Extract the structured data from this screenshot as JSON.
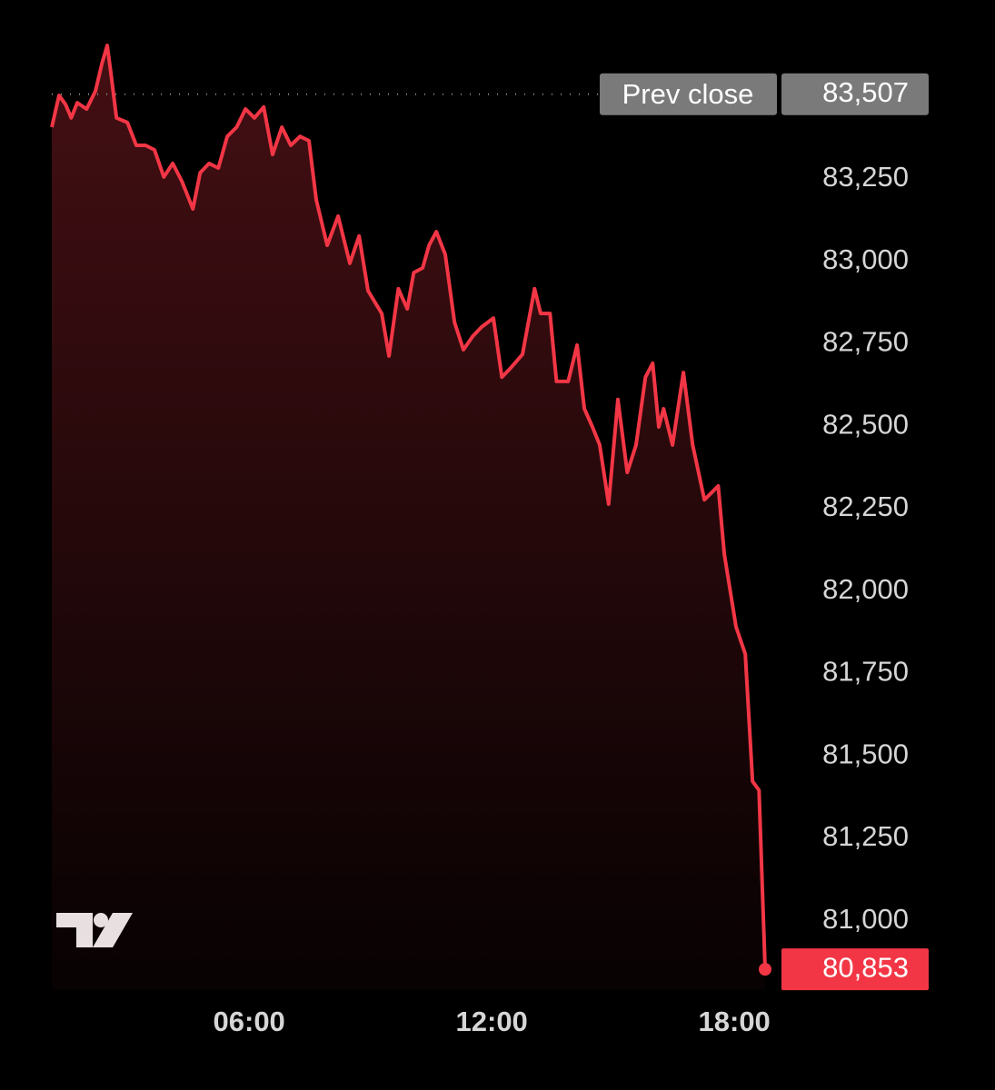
{
  "chart_data": {
    "type": "area",
    "color": "#f23645",
    "x": [
      1.12,
      1.3,
      1.46,
      1.6,
      1.75,
      1.98,
      2.2,
      2.36,
      2.49,
      2.58,
      2.72,
      2.99,
      3.21,
      3.44,
      3.66,
      3.89,
      4.11,
      4.34,
      4.61,
      4.79,
      5.01,
      5.24,
      5.46,
      5.69,
      5.91,
      6.13,
      6.36,
      6.58,
      6.81,
      7.03,
      7.26,
      7.48,
      7.66,
      7.93,
      8.2,
      8.49,
      8.72,
      8.94,
      9.28,
      9.46,
      9.69,
      9.91,
      10.07,
      10.29,
      10.45,
      10.63,
      10.85,
      11.08,
      11.3,
      11.53,
      11.75,
      12.04,
      12.25,
      12.47,
      12.76,
      13.06,
      13.21,
      13.44,
      13.6,
      13.89,
      14.11,
      14.29,
      14.49,
      14.67,
      14.89,
      15.12,
      15.35,
      15.57,
      15.8,
      15.98,
      16.13,
      16.25,
      16.47,
      16.74,
      16.97,
      17.26,
      17.6,
      17.75,
      18.04,
      18.27,
      18.45,
      18.61,
      18.76
    ],
    "values": [
      83407,
      83503,
      83476,
      83435,
      83481,
      83462,
      83517,
      83600,
      83655,
      83572,
      83435,
      83421,
      83352,
      83352,
      83338,
      83256,
      83297,
      83242,
      83159,
      83269,
      83297,
      83283,
      83379,
      83407,
      83462,
      83435,
      83468,
      83324,
      83407,
      83352,
      83379,
      83366,
      83187,
      83049,
      83137,
      82994,
      83077,
      82911,
      82842,
      82713,
      82917,
      82856,
      82966,
      82980,
      83049,
      83090,
      83021,
      82815,
      82732,
      82773,
      82801,
      82828,
      82649,
      82677,
      82718,
      82917,
      82842,
      82842,
      82636,
      82636,
      82746,
      82553,
      82498,
      82443,
      82264,
      82581,
      82360,
      82443,
      82649,
      82691,
      82498,
      82553,
      82443,
      82663,
      82443,
      82277,
      82319,
      82112,
      81892,
      81809,
      81423,
      81396,
      80853
    ],
    "last_value_label": "80,853",
    "xlim": [
      1.12,
      18.76
    ],
    "ylim": [
      80790,
      83710
    ],
    "xticks": [
      {
        "value": 6,
        "label": "06:00"
      },
      {
        "value": 12,
        "label": "12:00"
      },
      {
        "value": 18,
        "label": "18:00"
      }
    ],
    "yticks": [
      {
        "value": 81000,
        "label": "81,000"
      },
      {
        "value": 81250,
        "label": "81,250"
      },
      {
        "value": 81500,
        "label": "81,500"
      },
      {
        "value": 81750,
        "label": "81,750"
      },
      {
        "value": 82000,
        "label": "82,000"
      },
      {
        "value": 82250,
        "label": "82,250"
      },
      {
        "value": 82500,
        "label": "82,500"
      },
      {
        "value": 82750,
        "label": "82,750"
      },
      {
        "value": 83000,
        "label": "83,000"
      },
      {
        "value": 83250,
        "label": "83,250"
      }
    ],
    "prev_close": {
      "label": "Prev close",
      "value": 83507,
      "value_label": "83,507"
    }
  }
}
